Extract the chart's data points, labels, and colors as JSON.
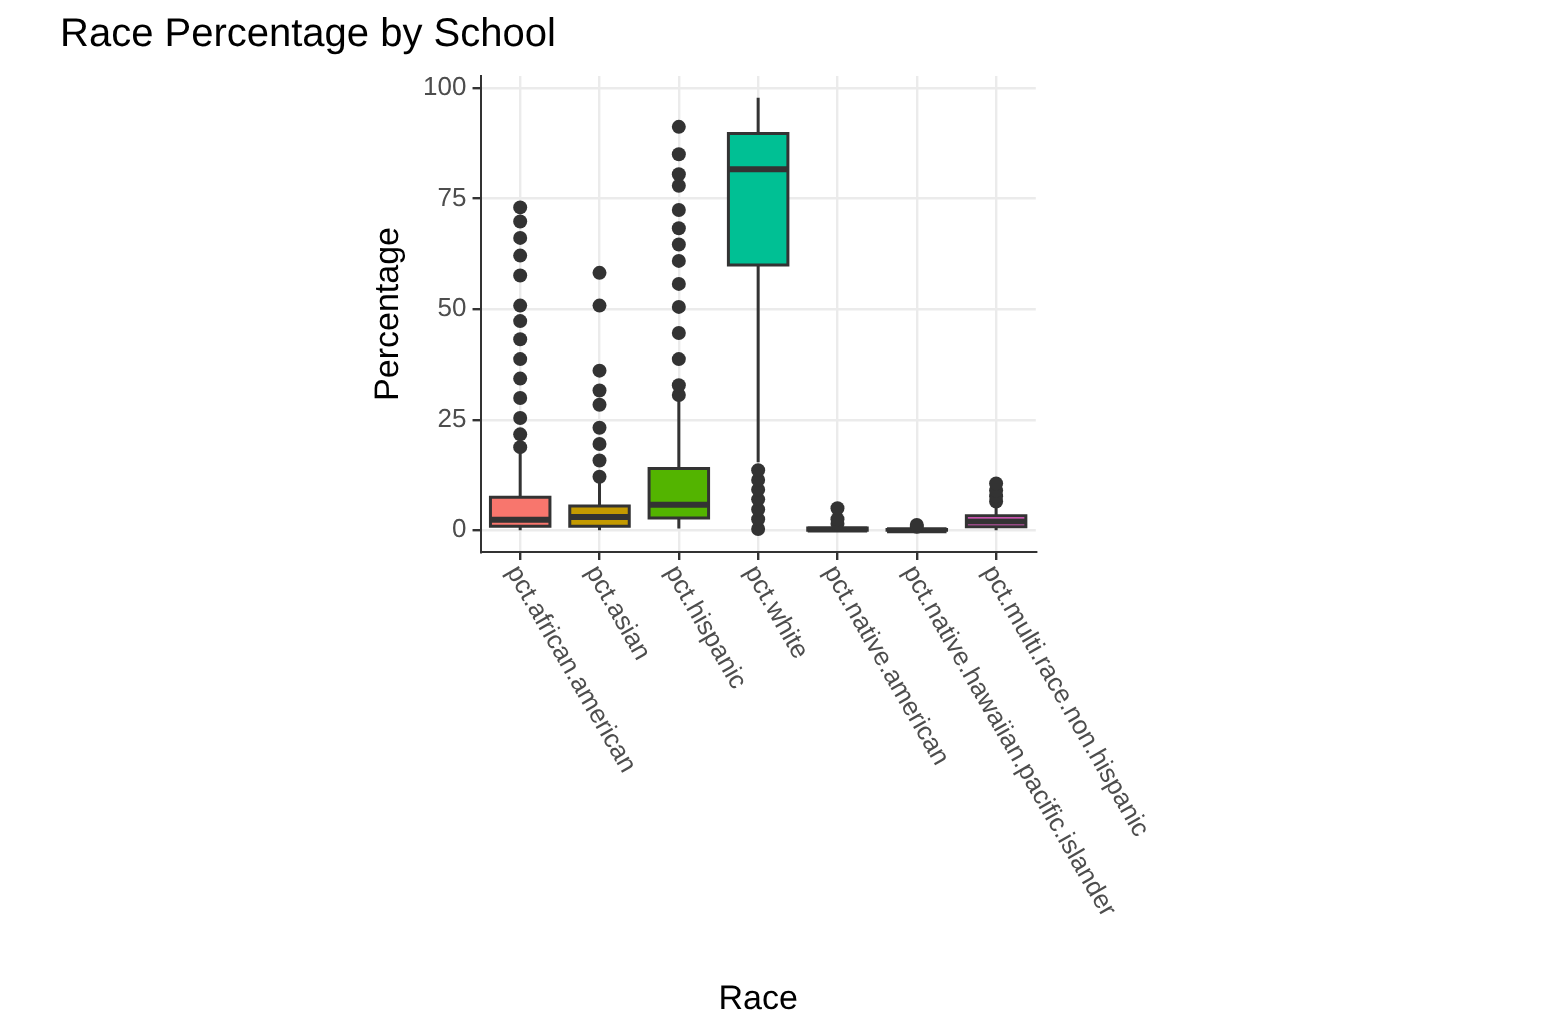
{
  "chart_data": {
    "type": "box",
    "title": "Race Percentage by School",
    "xlabel": "Race",
    "ylabel": "Percentage",
    "categories": [
      "pct.african.american",
      "pct.asian",
      "pct.hispanic",
      "pct.white",
      "pct.native.american",
      "pct.native.hawaiian.pacific.islander",
      "pct.multi.race.non.hispanic"
    ],
    "colors": [
      "#f8766d",
      "#c49a00",
      "#53b400",
      "#00c094",
      "#00b6eb",
      "#a58aff",
      "#fb61d7"
    ],
    "boxes": [
      {
        "low": 0,
        "q1": 0.9,
        "median": 2.4,
        "q3": 7.5,
        "high": 17.4,
        "outliers": [
          18.8,
          21.7,
          25.4,
          29.9,
          34.3,
          38.7,
          43.2,
          47.3,
          50.8,
          57.6,
          62.1,
          66.1,
          69.8,
          73
        ]
      },
      {
        "low": 0,
        "q1": 0.9,
        "median": 3,
        "q3": 5.5,
        "high": 11,
        "outliers": [
          12.1,
          15.8,
          19.5,
          23.2,
          28.4,
          31.6,
          36.1,
          50.8,
          58.2
        ]
      },
      {
        "low": 0.4,
        "q1": 2.8,
        "median": 5.8,
        "q3": 14,
        "high": 30.1,
        "outliers": [
          30.6,
          32.8,
          38.7,
          44.6,
          50.5,
          55.7,
          60.9,
          64.6,
          68.3,
          72.4,
          77.9,
          80.5,
          85,
          91.2
        ]
      },
      {
        "low": 15.4,
        "q1": 60,
        "median": 81.6,
        "q3": 89.7,
        "high": 97.8,
        "outliers": [
          0.3,
          2.5,
          4.7,
          7,
          9.2,
          11.4,
          13.6
        ]
      },
      {
        "low": 0,
        "q1": 0,
        "median": 0.2,
        "q3": 0.5,
        "high": 1,
        "outliers": [
          1.5,
          2.5,
          5
        ]
      },
      {
        "low": 0,
        "q1": 0,
        "median": 0,
        "q3": 0.2,
        "high": 0.5,
        "outliers": [
          0.8,
          1.2
        ]
      },
      {
        "low": 0,
        "q1": 0.8,
        "median": 2,
        "q3": 3.3,
        "high": 5.5,
        "outliers": [
          6.5,
          7.7,
          9,
          10.6
        ]
      }
    ],
    "ylim": [
      -4.9,
      102.7
    ],
    "yticks": [
      0,
      25,
      50,
      75,
      100
    ],
    "grid": true,
    "legend": false
  }
}
